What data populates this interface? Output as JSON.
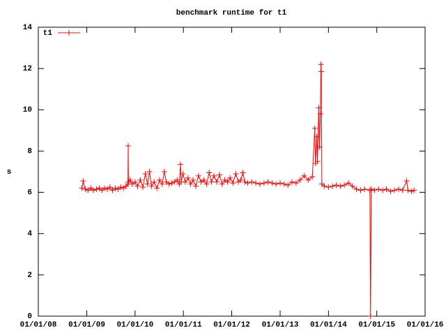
{
  "chart_data": {
    "type": "line",
    "title": "benchmark runtime for t1",
    "y_label": "s",
    "xlim": [
      "2008-01-01",
      "2016-01-01"
    ],
    "xticks": [
      {
        "value": "2008-01-01",
        "label": "01/01/08"
      },
      {
        "value": "2009-01-01",
        "label": "01/01/09"
      },
      {
        "value": "2010-01-01",
        "label": "01/01/10"
      },
      {
        "value": "2011-01-01",
        "label": "01/01/11"
      },
      {
        "value": "2012-01-01",
        "label": "01/01/12"
      },
      {
        "value": "2013-01-01",
        "label": "01/01/13"
      },
      {
        "value": "2014-01-01",
        "label": "01/01/14"
      },
      {
        "value": "2015-01-01",
        "label": "01/01/15"
      },
      {
        "value": "2016-01-01",
        "label": "01/01/16"
      }
    ],
    "ylim": [
      0,
      14
    ],
    "yticks": [
      0,
      2,
      4,
      6,
      8,
      10,
      12,
      14
    ],
    "grid": false,
    "legend": "top-left",
    "x": [
      "2008-11-25",
      "2008-12-05",
      "2008-12-20",
      "2009-01-10",
      "2009-02-01",
      "2009-02-20",
      "2009-03-15",
      "2009-04-05",
      "2009-04-25",
      "2009-05-15",
      "2009-06-05",
      "2009-06-25",
      "2009-07-15",
      "2009-08-05",
      "2009-08-25",
      "2009-09-15",
      "2009-10-05",
      "2009-10-25",
      "2009-11-08",
      "2009-11-10",
      "2009-11-12",
      "2009-11-25",
      "2009-12-10",
      "2010-01-01",
      "2010-01-20",
      "2010-02-10",
      "2010-03-01",
      "2010-03-20",
      "2010-04-05",
      "2010-04-20",
      "2010-05-05",
      "2010-05-25",
      "2010-06-15",
      "2010-07-05",
      "2010-07-25",
      "2010-08-10",
      "2010-08-25",
      "2010-09-15",
      "2010-10-05",
      "2010-10-25",
      "2010-11-15",
      "2010-12-01",
      "2010-12-10",
      "2010-12-15",
      "2010-12-28",
      "2011-01-15",
      "2011-02-05",
      "2011-02-25",
      "2011-03-15",
      "2011-04-05",
      "2011-04-25",
      "2011-05-15",
      "2011-06-05",
      "2011-06-25",
      "2011-07-15",
      "2011-08-01",
      "2011-08-20",
      "2011-09-10",
      "2011-10-01",
      "2011-10-20",
      "2011-11-10",
      "2011-12-01",
      "2011-12-20",
      "2012-01-10",
      "2012-02-01",
      "2012-02-20",
      "2012-03-10",
      "2012-03-25",
      "2012-04-10",
      "2012-05-01",
      "2012-06-01",
      "2012-07-01",
      "2012-08-01",
      "2012-09-01",
      "2012-10-01",
      "2012-11-01",
      "2012-12-01",
      "2013-01-01",
      "2013-02-01",
      "2013-03-01",
      "2013-04-01",
      "2013-05-01",
      "2013-06-01",
      "2013-07-01",
      "2013-08-01",
      "2013-09-01",
      "2013-09-20",
      "2013-09-25",
      "2013-10-05",
      "2013-10-10",
      "2013-10-20",
      "2013-10-25",
      "2013-11-01",
      "2013-11-05",
      "2013-11-08",
      "2013-11-12",
      "2013-12-01",
      "2014-01-01",
      "2014-02-01",
      "2014-03-01",
      "2014-04-01",
      "2014-05-01",
      "2014-06-01",
      "2014-07-01",
      "2014-08-01",
      "2014-09-01",
      "2014-10-01",
      "2014-11-10",
      "2014-11-15",
      "2014-11-20",
      "2014-12-15",
      "2015-01-15",
      "2015-02-15",
      "2015-03-15",
      "2015-04-15",
      "2015-05-15",
      "2015-06-15",
      "2015-07-15",
      "2015-08-15",
      "2015-08-25",
      "2015-09-20",
      "2015-10-10"
    ],
    "series": [
      {
        "name": "t1",
        "color": "#ff0000",
        "values": [
          6.2,
          6.55,
          6.15,
          6.1,
          6.2,
          6.1,
          6.15,
          6.2,
          6.1,
          6.2,
          6.15,
          6.25,
          6.1,
          6.2,
          6.15,
          6.25,
          6.2,
          6.3,
          6.4,
          8.25,
          6.5,
          6.6,
          6.4,
          6.5,
          6.3,
          6.6,
          6.25,
          6.9,
          6.4,
          7.0,
          6.3,
          6.5,
          6.2,
          6.6,
          6.4,
          7.0,
          6.5,
          6.4,
          6.45,
          6.5,
          6.6,
          6.4,
          7.35,
          6.5,
          6.9,
          6.5,
          6.7,
          6.4,
          6.6,
          6.3,
          6.8,
          6.5,
          6.6,
          6.4,
          6.95,
          6.5,
          6.8,
          6.5,
          6.85,
          6.4,
          6.6,
          6.5,
          6.7,
          6.45,
          6.9,
          6.5,
          6.6,
          6.95,
          6.5,
          6.45,
          6.5,
          6.45,
          6.4,
          6.45,
          6.5,
          6.45,
          6.4,
          6.45,
          6.4,
          6.35,
          6.5,
          6.45,
          6.6,
          6.8,
          6.6,
          6.75,
          9.1,
          7.4,
          8.7,
          7.5,
          10.1,
          8.2,
          9.8,
          12.2,
          11.85,
          6.4,
          6.3,
          6.25,
          6.3,
          6.35,
          6.3,
          6.35,
          6.45,
          6.3,
          6.15,
          6.1,
          6.15,
          6.1,
          0,
          6.15,
          6.1,
          6.15,
          6.1,
          6.15,
          6.05,
          6.1,
          6.15,
          6.1,
          6.55,
          6.1,
          6.05,
          6.1
        ]
      }
    ]
  }
}
